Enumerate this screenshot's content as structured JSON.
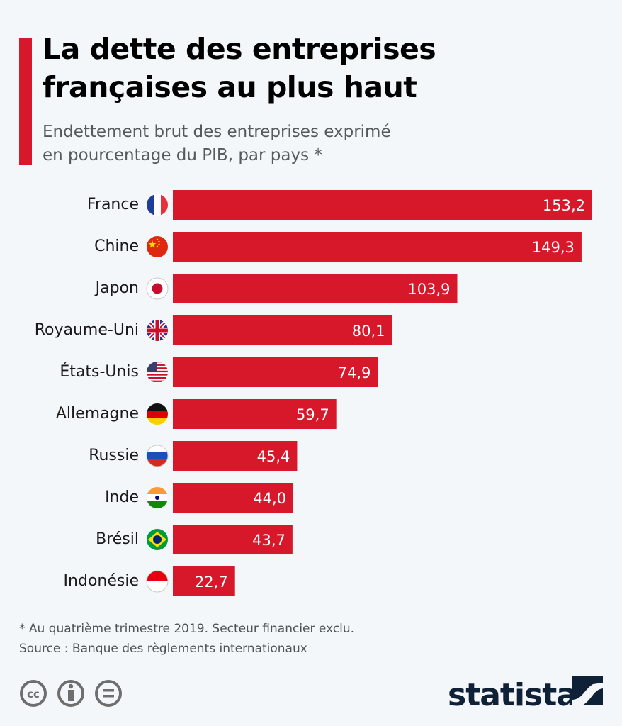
{
  "header": {
    "title_line1": "La dette des entreprises",
    "title_line2": "françaises au plus haut",
    "subtitle_line1": "Endettement brut des entreprises exprimé",
    "subtitle_line2": "en pourcentage du PIB, par pays *"
  },
  "colors": {
    "bar": "#d7172a",
    "accent": "#d7172a",
    "background": "#f4f7fa",
    "logo": "#0f2137"
  },
  "chart_data": {
    "type": "bar",
    "orientation": "horizontal",
    "title": "La dette des entreprises françaises au plus haut",
    "subtitle": "Endettement brut des entreprises exprimé en pourcentage du PIB, par pays *",
    "xlabel": "",
    "ylabel": "",
    "xlim": [
      0,
      153.2
    ],
    "grid": false,
    "categories": [
      "France",
      "Chine",
      "Japon",
      "Royaume-Uni",
      "États-Unis",
      "Allemagne",
      "Russie",
      "Inde",
      "Brésil",
      "Indonésie"
    ],
    "values": [
      153.2,
      149.3,
      103.9,
      80.1,
      74.9,
      59.7,
      45.4,
      44.0,
      43.7,
      22.7
    ],
    "value_labels": [
      "153,2",
      "149,3",
      "103,9",
      "80,1",
      "74,9",
      "59,7",
      "45,4",
      "44,0",
      "43,7",
      "22,7"
    ],
    "flags": [
      "france-flag-icon",
      "china-flag-icon",
      "japan-flag-icon",
      "uk-flag-icon",
      "usa-flag-icon",
      "germany-flag-icon",
      "russia-flag-icon",
      "india-flag-icon",
      "brazil-flag-icon",
      "indonesia-flag-icon"
    ]
  },
  "footer": {
    "note": "* Au quatrième trimestre 2019. Secteur financier exclu.",
    "source": "Source : Banque des règlements internationaux",
    "license_icons": [
      "cc-icon",
      "attribution-icon",
      "no-derivatives-icon"
    ],
    "logo_text": "statista"
  }
}
